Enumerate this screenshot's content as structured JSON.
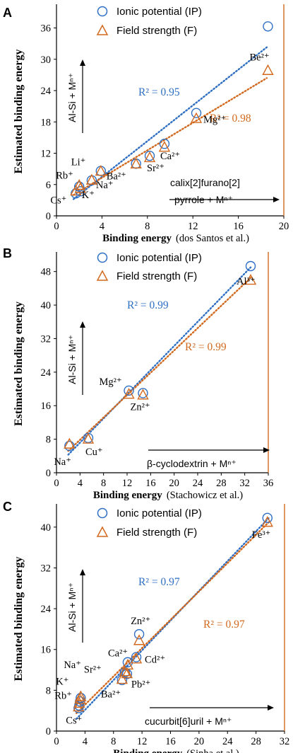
{
  "colors": {
    "ip": "#2e6fc4",
    "f": "#d2691e",
    "axis": "#000000"
  },
  "ylabel": "Estimated binding energy",
  "xlabel_bold": "Binding energy",
  "legend": {
    "ip": "Ionic potential (IP)",
    "f": "Field strength (F)"
  },
  "chart_data": [
    {
      "panel": "A",
      "type": "scatter",
      "xlabel_ref": "(dos Santos et al.)",
      "xlim": [
        0,
        20
      ],
      "ylim": [
        0,
        40
      ],
      "xticks": [
        0,
        4,
        8,
        12,
        16,
        20
      ],
      "yticks": [
        0,
        6,
        12,
        18,
        24,
        30,
        36
      ],
      "annot_y": "Al-Si + Mⁿ⁺",
      "annot_x": [
        "calix[2]furano[2]",
        "pyrrole + Mⁿ⁺"
      ],
      "r2_ip": "R² = 0.95",
      "r2_f": "R² = 0.98",
      "fit_ip": [
        [
          1.5,
          3.2
        ],
        [
          18.5,
          32.3
        ]
      ],
      "fit_f": [
        [
          1.5,
          4.0
        ],
        [
          18.5,
          26.4
        ]
      ],
      "ions": [
        {
          "label": "Cs⁺",
          "x": 1.7,
          "ip": 4.3,
          "f": 4.8
        },
        {
          "label": "K⁺",
          "x": 2.1,
          "ip": 4.7,
          "f": 5.3
        },
        {
          "label": "Rb⁺",
          "x": 2.0,
          "ip": 5.6,
          "f": 5.9
        },
        {
          "label": "Na⁺",
          "x": 3.1,
          "ip": 6.8,
          "f": 6.9
        },
        {
          "label": "Li⁺",
          "x": 3.9,
          "ip": 8.6,
          "f": 8.6
        },
        {
          "label": "Ba²⁺",
          "x": 7.0,
          "ip": 10.0,
          "f": 10.0
        },
        {
          "label": "Sr²⁺",
          "x": 8.2,
          "ip": 11.5,
          "f": 11.2
        },
        {
          "label": "Ca²⁺",
          "x": 9.5,
          "ip": 13.8,
          "f": 13.2
        },
        {
          "label": "Mg²⁺",
          "x": 12.3,
          "ip": 19.7,
          "f": 18.7
        },
        {
          "label": "Be²⁺",
          "x": 18.6,
          "ip": 36.3,
          "f": 27.9
        }
      ]
    },
    {
      "panel": "B",
      "type": "scatter",
      "xlabel_ref": "(Stachowicz et al.)",
      "xlim": [
        0,
        36
      ],
      "ylim": [
        0,
        52
      ],
      "xticks": [
        0,
        4,
        8,
        12,
        16,
        20,
        24,
        28,
        32,
        36
      ],
      "yticks": [
        0,
        8,
        16,
        24,
        32,
        40,
        48
      ],
      "annot_y": "Al-Si + Mⁿ⁺",
      "annot_x": [
        "β-cyclodextrin + Mⁿ⁺"
      ],
      "r2_ip": "R² = 0.99",
      "r2_f": "R² = 0.99",
      "fit_ip": [
        [
          2.0,
          4.3
        ],
        [
          33.0,
          49.0
        ]
      ],
      "fit_f": [
        [
          2.0,
          5.2
        ],
        [
          33.0,
          46.5
        ]
      ],
      "ions": [
        {
          "label": "Na⁺",
          "x": 2.2,
          "ip": 6.4,
          "f": 6.9
        },
        {
          "label": "Cu⁺",
          "x": 5.4,
          "ip": 8.3,
          "f": 8.1
        },
        {
          "label": "Mg²⁺",
          "x": 12.3,
          "ip": 19.6,
          "f": 18.8
        },
        {
          "label": "Zn²⁺",
          "x": 14.7,
          "ip": 19.0,
          "f": 18.6
        },
        {
          "label": "Al³⁺",
          "x": 33.0,
          "ip": 49.3,
          "f": 46.0
        }
      ]
    },
    {
      "panel": "C",
      "type": "scatter",
      "xlabel_ref": "(Sinha et al.)",
      "xlim": [
        0,
        32
      ],
      "ylim": [
        0,
        44
      ],
      "xticks": [
        0,
        4,
        8,
        12,
        16,
        20,
        24,
        28,
        32
      ],
      "yticks": [
        0,
        8,
        16,
        24,
        32,
        40
      ],
      "annot_y": "Al-Si + Mⁿ⁺",
      "annot_x": [
        "cucurbit[6]uril + Mⁿ⁺"
      ],
      "r2_ip": "R² = 0.97",
      "r2_f": "R² = 0.97",
      "fit_ip": [
        [
          2.8,
          2.4
        ],
        [
          29.8,
          41.8
        ]
      ],
      "fit_f": [
        [
          2.8,
          3.5
        ],
        [
          29.8,
          41.0
        ]
      ],
      "ions": [
        {
          "label": "Cs⁺",
          "x": 3.1,
          "ip": 4.5,
          "f": 4.8
        },
        {
          "label": "Rb⁺",
          "x": 3.2,
          "ip": 5.0,
          "f": 5.5
        },
        {
          "label": "K⁺",
          "x": 3.3,
          "ip": 5.8,
          "f": 6.3
        },
        {
          "label": "Na⁺",
          "x": 3.4,
          "ip": 6.5,
          "f": 6.8
        },
        {
          "label": "Ba²⁺",
          "x": 9.2,
          "ip": 10.0,
          "f": 10.2
        },
        {
          "label": "Sr²⁺",
          "x": 9.6,
          "ip": 11.5,
          "f": 11.7
        },
        {
          "label": "Pb²⁺",
          "x": 9.9,
          "ip": 11.2,
          "f": 11.3
        },
        {
          "label": "Ca²⁺",
          "x": 10.0,
          "ip": 13.5,
          "f": 13.0
        },
        {
          "label": "Cd²⁺",
          "x": 11.2,
          "ip": 14.5,
          "f": 14.2
        },
        {
          "label": "Zn²⁺",
          "x": 11.6,
          "ip": 19.0,
          "f": 17.8
        },
        {
          "label": "Fe³⁺",
          "x": 29.6,
          "ip": 41.8,
          "f": 41.0
        }
      ]
    }
  ]
}
